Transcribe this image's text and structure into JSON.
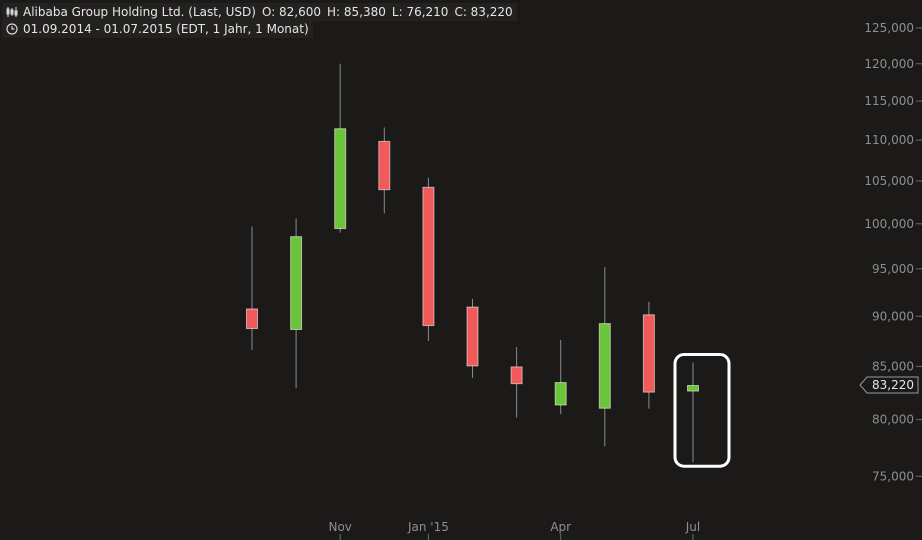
{
  "header": {
    "instrument": "Alibaba Group Holding Ltd. (Last, USD)",
    "open": "O: 82,600",
    "high": "H: 85,380",
    "low": "L: 76,210",
    "close": "C: 83,220",
    "period": "01.09.2014 - 01.07.2015 (EDT, 1 Jahr, 1 Monat)"
  },
  "chart_data": {
    "type": "candlestick",
    "y_scale": "log",
    "ylim": [
      73000,
      127000
    ],
    "y_ticks": [
      75000,
      80000,
      85000,
      90000,
      95000,
      100000,
      105000,
      110000,
      115000,
      120000,
      125000
    ],
    "y_tick_labels": [
      "75,000",
      "80,000",
      "85,000",
      "90,000",
      "95,000",
      "100,000",
      "105,000",
      "110,000",
      "115,000",
      "120,000",
      "125,000"
    ],
    "x_labels": [
      {
        "label": "Nov",
        "index": 2
      },
      {
        "label": "Jan '15",
        "index": 4
      },
      {
        "label": "Apr",
        "index": 7
      },
      {
        "label": "Jul",
        "index": 10
      }
    ],
    "candles": [
      {
        "month": "Sep 2014",
        "open": 90800,
        "high": 99700,
        "low": 86600,
        "close": 88700
      },
      {
        "month": "Oct 2014",
        "open": 88600,
        "high": 100600,
        "low": 82900,
        "close": 98600
      },
      {
        "month": "Nov 2014",
        "open": 99400,
        "high": 120000,
        "low": 99000,
        "close": 111500
      },
      {
        "month": "Dec 2014",
        "open": 109900,
        "high": 111600,
        "low": 101200,
        "close": 103900
      },
      {
        "month": "Jan 2015",
        "open": 104300,
        "high": 105400,
        "low": 87500,
        "close": 89000
      },
      {
        "month": "Feb 2015",
        "open": 91000,
        "high": 91800,
        "low": 83900,
        "close": 85000
      },
      {
        "month": "Mar 2015",
        "open": 85000,
        "high": 86900,
        "low": 80200,
        "close": 83300
      },
      {
        "month": "Apr 2015",
        "open": 81300,
        "high": 87600,
        "low": 80500,
        "close": 83500
      },
      {
        "month": "May 2015",
        "open": 81000,
        "high": 95200,
        "low": 77600,
        "close": 89300
      },
      {
        "month": "Jun 2015",
        "open": 90200,
        "high": 91500,
        "low": 81000,
        "close": 82500
      },
      {
        "month": "Jul 2015",
        "open": 82600,
        "high": 85380,
        "low": 76210,
        "close": 83220
      }
    ],
    "last_price_label": "83,220",
    "last_price": 83220,
    "highlight_index": 10,
    "colors": {
      "up": "#6cc43a",
      "down": "#f05a5a",
      "wick": "#8a8a8a",
      "axis_text": "#8e8e8e",
      "background": "#1c1a19",
      "highlight": "#ffffff"
    }
  }
}
